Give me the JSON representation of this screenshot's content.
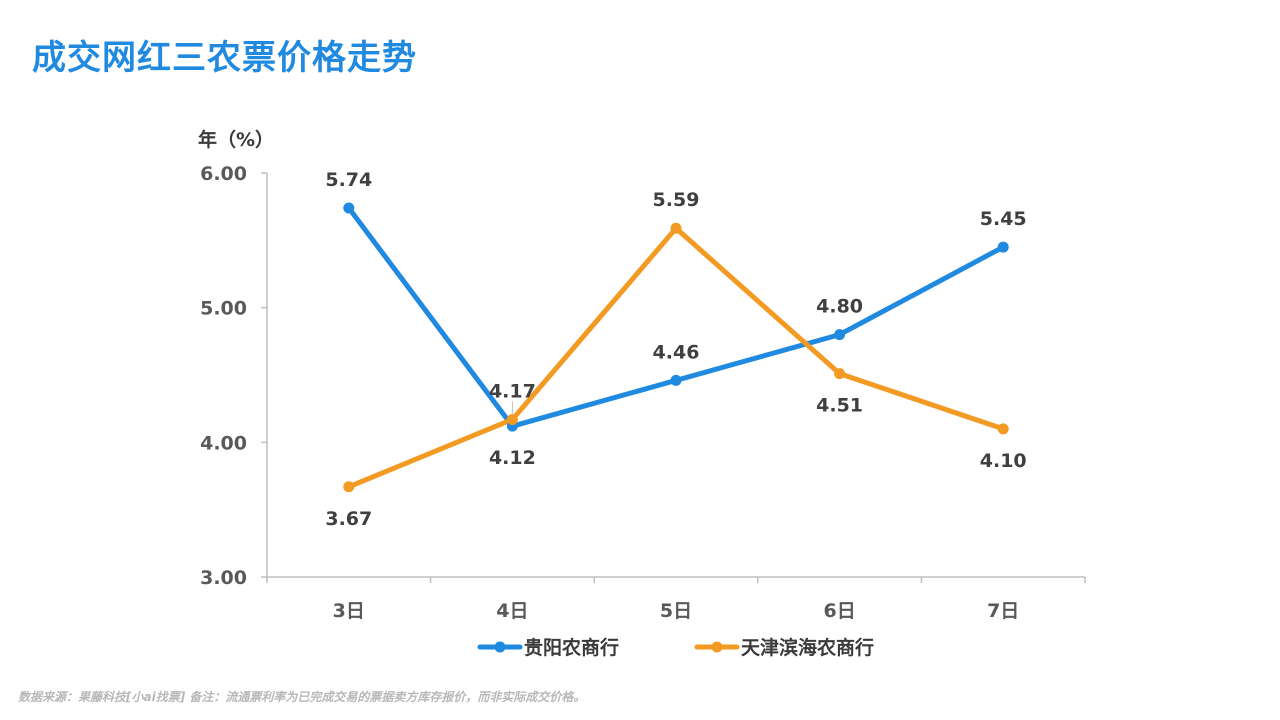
{
  "page": {
    "title": "成交网红三农票价格走势",
    "footnote": "数据来源：果藤科技[小ai找票] 备注：流通票利率为已完成交易的票据卖方库存报价，而非实际成交价格。"
  },
  "colors": {
    "title": "#1f8ae0",
    "series_guiyang": "#1f8ae0",
    "series_tianjin": "#f39a23",
    "axis": "#bfbfbf"
  },
  "chart_data": {
    "type": "line",
    "ylabel": "年（%）",
    "categories": [
      "3日",
      "4日",
      "5日",
      "6日",
      "7日"
    ],
    "y_ticks": [
      "3.00",
      "4.00",
      "5.00",
      "6.00"
    ],
    "ylim": [
      3.0,
      6.0
    ],
    "grid": false,
    "legend_position": "bottom",
    "series": [
      {
        "name": "贵阳农商行",
        "color": "#1f8ae0",
        "values": [
          5.74,
          4.12,
          4.46,
          4.8,
          5.45
        ],
        "labels": [
          "5.74",
          "4.12",
          "4.46",
          "4.80",
          "5.45"
        ],
        "label_side": [
          "above",
          "below",
          "above",
          "above",
          "above"
        ]
      },
      {
        "name": "天津滨海农商行",
        "color": "#f39a23",
        "values": [
          3.67,
          4.17,
          5.59,
          4.51,
          4.1
        ],
        "labels": [
          "3.67",
          "4.17",
          "5.59",
          "4.51",
          "4.10"
        ],
        "label_side": [
          "below",
          "above",
          "above",
          "below",
          "below"
        ]
      }
    ]
  }
}
